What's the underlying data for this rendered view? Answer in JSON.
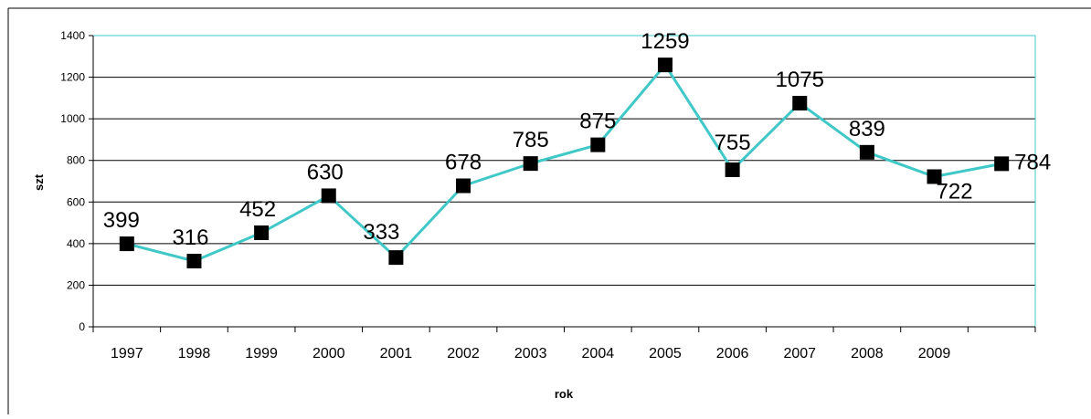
{
  "chart_data": {
    "type": "line",
    "title": "",
    "xlabel": "rok",
    "ylabel": "szt",
    "categories": [
      "1997",
      "1998",
      "1999",
      "2000",
      "2001",
      "2002",
      "2003",
      "2004",
      "2005",
      "2006",
      "2007",
      "2008",
      "2009",
      ""
    ],
    "series": [
      {
        "values": [
          399,
          316,
          452,
          630,
          333,
          678,
          785,
          875,
          1259,
          755,
          1075,
          839,
          722,
          784
        ]
      }
    ],
    "data_labels": [
      "399",
      "316",
      "452",
      "630",
      "333",
      "678",
      "785",
      "875",
      "1259",
      "755",
      "1075",
      "839",
      "722",
      "784"
    ],
    "ylim": [
      0,
      1400
    ],
    "yticks": [
      0,
      200,
      400,
      600,
      800,
      1000,
      1200,
      1400
    ],
    "grid": true,
    "legend": "none",
    "line_color": "#40C8C8",
    "marker_color": "#000000",
    "plot_border_color": "#40C8C8",
    "gridline_color": "#000000"
  }
}
